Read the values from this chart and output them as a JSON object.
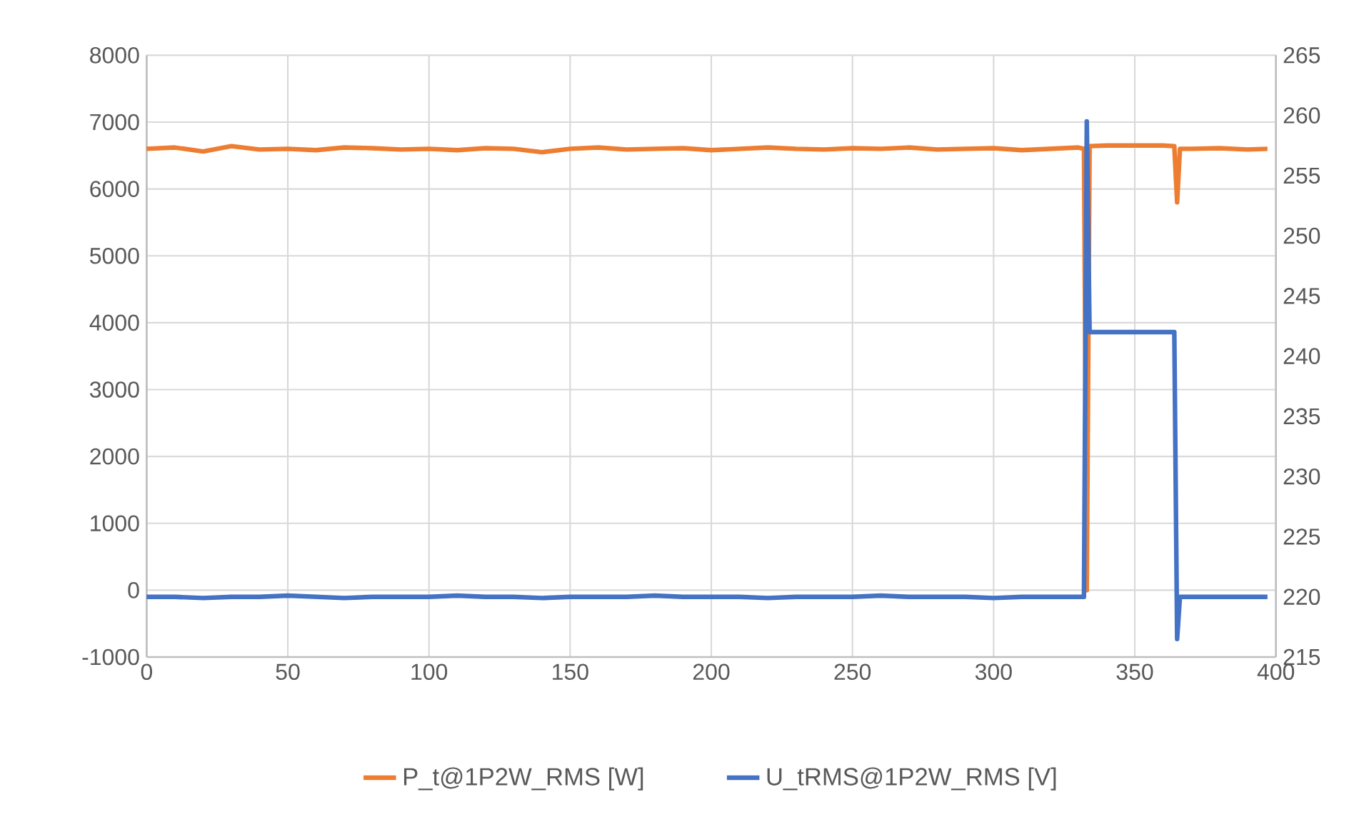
{
  "chart_data": {
    "type": "line",
    "xlim": [
      0,
      400
    ],
    "xticks": [
      0,
      50,
      100,
      150,
      200,
      250,
      300,
      350,
      400
    ],
    "ylim": [
      -1000,
      8000
    ],
    "yticks": [
      -1000,
      0,
      1000,
      2000,
      3000,
      4000,
      5000,
      6000,
      7000,
      8000
    ],
    "y2lim": [
      215,
      265
    ],
    "y2ticks": [
      215,
      220,
      225,
      230,
      235,
      240,
      245,
      250,
      255,
      260,
      265
    ],
    "grid": true,
    "legend": "bottom",
    "series": [
      {
        "name": "P_t@1P2W_RMS [W]",
        "color": "#ed7d31",
        "x": [
          0,
          10,
          20,
          30,
          40,
          50,
          60,
          70,
          80,
          90,
          100,
          110,
          120,
          130,
          140,
          150,
          160,
          170,
          180,
          190,
          200,
          210,
          220,
          230,
          240,
          250,
          260,
          270,
          280,
          290,
          300,
          310,
          320,
          330,
          332,
          333,
          334,
          340,
          350,
          360,
          364,
          365,
          366,
          370,
          380,
          390,
          397
        ],
        "values": [
          6600,
          6620,
          6560,
          6640,
          6590,
          6600,
          6580,
          6620,
          6610,
          6590,
          6600,
          6580,
          6610,
          6600,
          6550,
          6600,
          6620,
          6590,
          6600,
          6610,
          6580,
          6600,
          6620,
          6600,
          6590,
          6610,
          6600,
          6620,
          6590,
          6600,
          6610,
          6580,
          6600,
          6620,
          6600,
          0,
          6640,
          6650,
          6650,
          6650,
          6640,
          5800,
          6600,
          6600,
          6610,
          6590,
          6600
        ]
      },
      {
        "name": "U_tRMS@1P2W_RMS [V]",
        "color": "#4472c4",
        "axis": "y2",
        "x": [
          0,
          10,
          20,
          30,
          40,
          50,
          60,
          70,
          80,
          90,
          100,
          110,
          120,
          130,
          140,
          150,
          160,
          170,
          180,
          190,
          200,
          210,
          220,
          230,
          240,
          250,
          260,
          270,
          280,
          290,
          300,
          310,
          320,
          330,
          332,
          333,
          334,
          340,
          350,
          360,
          364,
          365,
          366,
          370,
          380,
          390,
          397
        ],
        "values": [
          220,
          220,
          219.9,
          220,
          220,
          220.1,
          220,
          219.9,
          220,
          220,
          220,
          220.1,
          220,
          220,
          219.9,
          220,
          220,
          220,
          220.1,
          220,
          220,
          220,
          219.9,
          220,
          220,
          220,
          220.1,
          220,
          220,
          220,
          219.9,
          220,
          220,
          220,
          220,
          259.5,
          242,
          242,
          242,
          242,
          242,
          216.5,
          220,
          220,
          220,
          220,
          220
        ]
      }
    ]
  }
}
